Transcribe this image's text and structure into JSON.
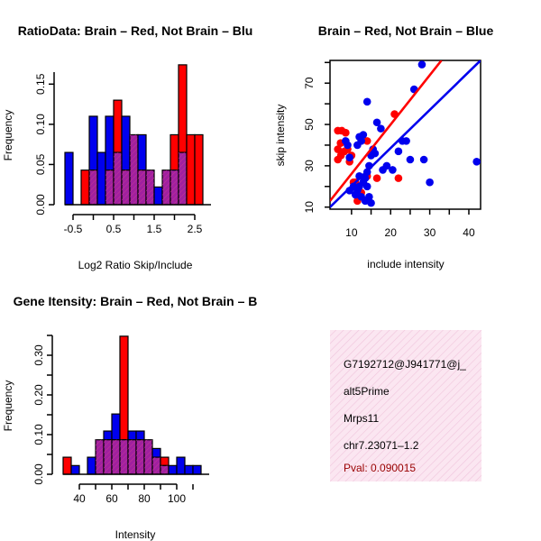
{
  "colors": {
    "red": "#ff0000",
    "blue": "#0000ee",
    "overlap": "#a020a0",
    "info_bg": "#f9dcec",
    "pval": "#990000"
  },
  "chart_data": [
    {
      "type": "bar",
      "name": "ratio-histogram",
      "title": "RatioData: Brain – Red, Not Brain – Blu",
      "xlabel": "Log2 Ratio Skip/Include",
      "ylabel": "Frequency",
      "xlim": [
        -0.7,
        2.9
      ],
      "ylim": [
        0,
        0.175
      ],
      "bin_width": 0.2,
      "bin_starts": [
        -0.7,
        -0.5,
        -0.3,
        -0.1,
        0.1,
        0.3,
        0.5,
        0.7,
        0.9,
        1.1,
        1.3,
        1.5,
        1.7,
        1.9,
        2.1,
        2.3,
        2.5,
        2.7
      ],
      "x_ticks": [
        -0.5,
        0.5,
        1.5,
        2.5
      ],
      "x_tick_labels": [
        "-0.5",
        "0.5",
        "1.5",
        "2.5"
      ],
      "y_ticks": [
        0.0,
        0.05,
        0.1,
        0.15
      ],
      "y_tick_labels": [
        "0.00",
        "0.05",
        "0.10",
        "0.15"
      ],
      "series": [
        {
          "name": "Brain",
          "color": "red",
          "values": [
            0.0,
            0.0,
            0.043,
            0.043,
            0.0,
            0.043,
            0.13,
            0.043,
            0.087,
            0.043,
            0.043,
            0.0,
            0.043,
            0.087,
            0.174,
            0.087,
            0.087,
            0.0
          ]
        },
        {
          "name": "Not Brain",
          "color": "blue",
          "values": [
            0.065,
            0.0,
            0.0,
            0.11,
            0.065,
            0.11,
            0.065,
            0.11,
            0.087,
            0.087,
            0.043,
            0.022,
            0.043,
            0.043,
            0.065,
            0.0,
            0.0,
            0.0
          ]
        }
      ]
    },
    {
      "type": "scatter",
      "name": "intensity-scatter",
      "title": "Brain – Red, Not Brain – Blue",
      "xlabel": "include intensity",
      "ylabel": "skip intensity",
      "xlim": [
        4.5,
        43
      ],
      "ylim": [
        9,
        81
      ],
      "x_ticks": [
        10,
        20,
        30,
        40
      ],
      "x_tick_labels": [
        "10",
        "20",
        "30",
        "40"
      ],
      "y_ticks": [
        10,
        30,
        50,
        70
      ],
      "y_tick_labels": [
        "10",
        "30",
        "50",
        "70"
      ],
      "series": [
        {
          "name": "Brain",
          "color": "red",
          "points": [
            [
              7.5,
              47
            ],
            [
              6.5,
              47
            ],
            [
              8.5,
              46
            ],
            [
              7.2,
              41
            ],
            [
              9,
              38
            ],
            [
              6.5,
              38
            ],
            [
              8.2,
              37
            ],
            [
              7.3,
              35
            ],
            [
              6.5,
              33
            ],
            [
              9.5,
              32
            ],
            [
              10.5,
              22
            ],
            [
              11,
              22
            ],
            [
              11.5,
              13
            ],
            [
              14,
              25
            ],
            [
              14,
              42
            ],
            [
              16.5,
              24
            ],
            [
              21,
              55
            ],
            [
              22,
              24
            ],
            [
              10,
              35
            ],
            [
              12.5,
              17
            ]
          ],
          "fit": [
            [
              4.5,
              13
            ],
            [
              33,
              81
            ]
          ]
        },
        {
          "name": "Not Brain",
          "color": "blue",
          "points": [
            [
              9,
              40
            ],
            [
              8.5,
              42
            ],
            [
              9.5,
              34
            ],
            [
              12,
              44
            ],
            [
              12.5,
              42
            ],
            [
              11.5,
              40
            ],
            [
              13,
              45
            ],
            [
              14,
              61
            ],
            [
              15.5,
              38
            ],
            [
              16.5,
              51
            ],
            [
              17.5,
              48
            ],
            [
              16,
              36
            ],
            [
              15,
              35
            ],
            [
              14.5,
              30
            ],
            [
              14,
              27
            ],
            [
              13.5,
              24
            ],
            [
              13,
              22
            ],
            [
              12,
              20
            ],
            [
              11.5,
              18
            ],
            [
              12.5,
              15
            ],
            [
              14.5,
              15
            ],
            [
              15,
              12
            ],
            [
              13.5,
              13
            ],
            [
              14,
              20
            ],
            [
              18,
              28
            ],
            [
              19,
              30
            ],
            [
              20.5,
              28
            ],
            [
              22,
              37
            ],
            [
              23,
              42
            ],
            [
              24,
              42
            ],
            [
              25,
              33
            ],
            [
              26,
              67
            ],
            [
              28,
              79
            ],
            [
              28.5,
              33
            ],
            [
              30,
              22
            ],
            [
              42,
              32
            ],
            [
              10.5,
              20
            ],
            [
              11,
              16
            ],
            [
              12,
              25
            ],
            [
              9.5,
              18
            ]
          ],
          "fit": [
            [
              4.5,
              10
            ],
            [
              43,
              81
            ]
          ]
        }
      ]
    },
    {
      "type": "bar",
      "name": "intensity-histogram",
      "title": "Gene Itensity: Brain – Red, Not Brain – B",
      "xlabel": "Intensity",
      "ylabel": "Frequency",
      "xlim": [
        30,
        120
      ],
      "ylim": [
        0,
        0.35
      ],
      "bin_width": 5,
      "bin_starts": [
        30,
        35,
        40,
        45,
        50,
        55,
        60,
        65,
        70,
        75,
        80,
        85,
        90,
        95,
        100,
        105,
        110,
        115
      ],
      "x_ticks": [
        40,
        60,
        80,
        100
      ],
      "x_tick_labels": [
        "40",
        "60",
        "80",
        "100"
      ],
      "y_ticks": [
        0.0,
        0.1,
        0.2,
        0.3
      ],
      "y_tick_labels": [
        "0.00",
        "0.10",
        "0.20",
        "0.30"
      ],
      "series": [
        {
          "name": "Brain",
          "color": "red",
          "values": [
            0.043,
            0.0,
            0.0,
            0.0,
            0.087,
            0.087,
            0.087,
            0.348,
            0.087,
            0.087,
            0.087,
            0.043,
            0.043,
            0.0,
            0.0,
            0.0,
            0.0,
            0.0
          ]
        },
        {
          "name": "Not Brain",
          "color": "blue",
          "values": [
            0.0,
            0.022,
            0.0,
            0.043,
            0.087,
            0.109,
            0.152,
            0.087,
            0.109,
            0.109,
            0.087,
            0.065,
            0.022,
            0.022,
            0.043,
            0.022,
            0.022,
            0.0
          ]
        }
      ]
    }
  ],
  "info_panel": {
    "lines": [
      "G7192712@J941771@j_",
      "alt5Prime",
      "Mrps11",
      "chr7.23071–1.2"
    ],
    "pval": "Pval: 0.090015"
  }
}
